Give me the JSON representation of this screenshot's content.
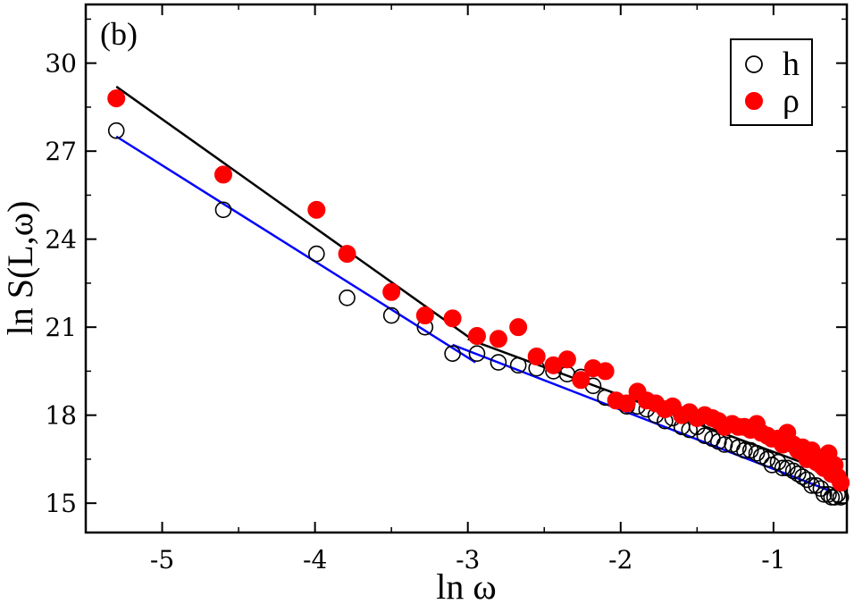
{
  "chart_data": {
    "type": "scatter",
    "panel_label": "(b)",
    "xlabel": "ln ω",
    "ylabel": "ln S(L,ω)",
    "xlim": [
      -5.5,
      -0.52
    ],
    "ylim": [
      14.0,
      32.0
    ],
    "xticks": [
      -5,
      -4,
      -3,
      -2,
      -1
    ],
    "xtick_labels": [
      "-5",
      "-4",
      "-3",
      "-2",
      "-1"
    ],
    "yticks": [
      15,
      18,
      21,
      24,
      27,
      30
    ],
    "ytick_labels": [
      "15",
      "18",
      "21",
      "24",
      "27",
      "30"
    ],
    "legend": {
      "position": "top-right",
      "entries": [
        {
          "label": "h",
          "marker": "open-circle",
          "color": "#000000"
        },
        {
          "label": "ρ",
          "marker": "filled-circle",
          "color": "#ff0000"
        }
      ]
    },
    "series": [
      {
        "name": "h",
        "marker": "open-circle",
        "color": "#000000",
        "x": [
          -5.3,
          -4.6,
          -3.99,
          -3.79,
          -3.5,
          -3.28,
          -3.1,
          -2.94,
          -2.8,
          -2.67,
          -2.55,
          -2.44,
          -2.35,
          -2.26,
          -2.18,
          -2.1,
          -2.03,
          -1.96,
          -1.89,
          -1.83,
          -1.77,
          -1.71,
          -1.66,
          -1.6,
          -1.55,
          -1.5,
          -1.45,
          -1.4,
          -1.36,
          -1.32,
          -1.27,
          -1.23,
          -1.19,
          -1.15,
          -1.11,
          -1.08,
          -1.04,
          -1.01,
          -0.97,
          -0.94,
          -0.91,
          -0.87,
          -0.84,
          -0.81,
          -0.78,
          -0.75,
          -0.72,
          -0.69,
          -0.67,
          -0.64,
          -0.62,
          -0.6,
          -0.58,
          -0.56
        ],
        "y": [
          27.7,
          25.0,
          23.5,
          22.0,
          21.4,
          21.0,
          20.1,
          20.1,
          19.8,
          19.7,
          19.6,
          19.5,
          19.4,
          19.3,
          19.0,
          18.6,
          18.5,
          18.3,
          18.3,
          18.2,
          18.0,
          17.8,
          17.9,
          17.6,
          17.5,
          17.6,
          17.3,
          17.2,
          17.1,
          17.0,
          17.0,
          16.9,
          16.8,
          16.8,
          16.7,
          16.6,
          16.5,
          16.3,
          16.4,
          16.2,
          16.2,
          16.1,
          16.0,
          15.9,
          15.8,
          15.6,
          15.6,
          15.5,
          15.3,
          15.3,
          15.2,
          15.2,
          15.3,
          15.2
        ]
      },
      {
        "name": "ρ",
        "marker": "filled-circle",
        "color": "#ff0000",
        "x": [
          -5.3,
          -4.6,
          -3.99,
          -3.79,
          -3.5,
          -3.28,
          -3.1,
          -2.94,
          -2.8,
          -2.67,
          -2.55,
          -2.44,
          -2.35,
          -2.26,
          -2.18,
          -2.1,
          -2.03,
          -1.96,
          -1.89,
          -1.83,
          -1.77,
          -1.71,
          -1.66,
          -1.6,
          -1.55,
          -1.5,
          -1.45,
          -1.4,
          -1.36,
          -1.32,
          -1.27,
          -1.23,
          -1.19,
          -1.15,
          -1.11,
          -1.08,
          -1.04,
          -1.01,
          -0.97,
          -0.94,
          -0.91,
          -0.87,
          -0.84,
          -0.81,
          -0.78,
          -0.75,
          -0.72,
          -0.69,
          -0.67,
          -0.64,
          -0.62,
          -0.6,
          -0.58,
          -0.56
        ],
        "y": [
          28.8,
          26.2,
          25.0,
          23.5,
          22.2,
          21.4,
          21.3,
          20.7,
          20.6,
          21.0,
          20.0,
          19.7,
          19.9,
          19.2,
          19.6,
          19.5,
          18.5,
          18.4,
          18.8,
          18.5,
          18.4,
          18.2,
          18.3,
          18.0,
          18.1,
          17.9,
          18.0,
          17.9,
          17.8,
          17.6,
          17.7,
          17.6,
          17.6,
          17.5,
          17.7,
          17.4,
          17.3,
          17.2,
          17.2,
          17.0,
          17.4,
          17.0,
          16.8,
          16.9,
          16.5,
          16.8,
          16.4,
          16.3,
          16.2,
          16.7,
          16.0,
          16.3,
          15.9,
          15.7
        ]
      }
    ],
    "fit_lines": [
      {
        "name": "h-fit-low",
        "color": "#0000ff",
        "x": [
          -5.3,
          -2.95
        ],
        "y": [
          27.5,
          19.8
        ]
      },
      {
        "name": "h-fit-high",
        "color": "#0000ff",
        "x": [
          -3.1,
          -0.62
        ],
        "y": [
          20.4,
          15.4
        ]
      },
      {
        "name": "rho-fit-low",
        "color": "#000000",
        "x": [
          -5.3,
          -2.95
        ],
        "y": [
          29.2,
          20.5
        ]
      },
      {
        "name": "rho-fit-high",
        "color": "#000000",
        "x": [
          -3.0,
          -0.56
        ],
        "y": [
          20.6,
          15.9
        ]
      }
    ]
  }
}
